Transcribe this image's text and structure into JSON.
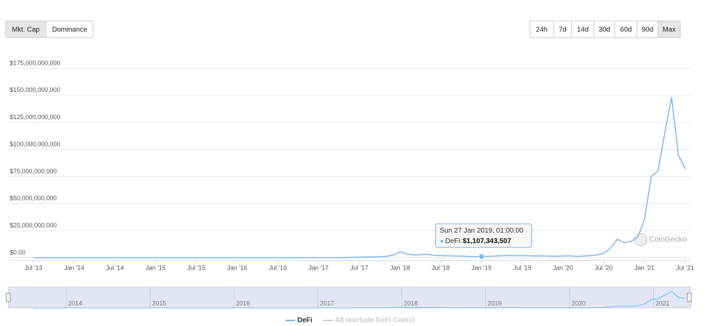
{
  "chart_data": {
    "type": "line",
    "tabs": [
      "Mkt. Cap",
      "Dominance"
    ],
    "ranges": [
      "24h",
      "7d",
      "14d",
      "30d",
      "60d",
      "90d",
      "Max"
    ],
    "watermark": "CoinGecko",
    "ylim": [
      0,
      175000000000
    ],
    "yticks": [
      {
        "value": 0,
        "label": "$0.00"
      },
      {
        "value": 25000000000,
        "label": "$25,000,000,000"
      },
      {
        "value": 50000000000,
        "label": "$50,000,000,000"
      },
      {
        "value": 75000000000,
        "label": "$75,000,000,000"
      },
      {
        "value": 100000000000,
        "label": "$100,000,000,000"
      },
      {
        "value": 125000000000,
        "label": "$125,000,000,000"
      },
      {
        "value": 150000000000,
        "label": "$150,000,000,000"
      },
      {
        "value": 175000000000,
        "label": "$175,000,000,000"
      }
    ],
    "xlim": [
      "2013-07",
      "2021-07"
    ],
    "xticks": [
      {
        "value": "2013-07",
        "label": "Jul '13"
      },
      {
        "value": "2014-01",
        "label": "Jan '14"
      },
      {
        "value": "2014-07",
        "label": "Jul '14"
      },
      {
        "value": "2015-01",
        "label": "Jan '15"
      },
      {
        "value": "2015-07",
        "label": "Jul '15"
      },
      {
        "value": "2016-01",
        "label": "Jan '16"
      },
      {
        "value": "2016-07",
        "label": "Jul '16"
      },
      {
        "value": "2017-01",
        "label": "Jan '17"
      },
      {
        "value": "2017-07",
        "label": "Jul '17"
      },
      {
        "value": "2018-01",
        "label": "Jan '18"
      },
      {
        "value": "2018-07",
        "label": "Jul '18"
      },
      {
        "value": "2019-01",
        "label": "Jan '19"
      },
      {
        "value": "2019-07",
        "label": "Jul '19"
      },
      {
        "value": "2020-01",
        "label": "Jan '20"
      },
      {
        "value": "2020-07",
        "label": "Jul '20"
      },
      {
        "value": "2021-01",
        "label": "Jan '21"
      },
      {
        "value": "2021-07",
        "label": "Jul '21"
      }
    ],
    "grid": true,
    "x": [
      "2013-07",
      "2013-10",
      "2014-01",
      "2014-04",
      "2014-07",
      "2014-10",
      "2015-01",
      "2015-04",
      "2015-07",
      "2015-10",
      "2016-01",
      "2016-04",
      "2016-07",
      "2016-10",
      "2017-01",
      "2017-02",
      "2017-03",
      "2017-04",
      "2017-05",
      "2017-06",
      "2017-07",
      "2017-08",
      "2017-09",
      "2017-10",
      "2017-11",
      "2017-12",
      "2018-01",
      "2018-02",
      "2018-03",
      "2018-04",
      "2018-05",
      "2018-06",
      "2018-07",
      "2018-08",
      "2018-09",
      "2018-10",
      "2018-11",
      "2018-12",
      "2019-01",
      "2019-02",
      "2019-03",
      "2019-04",
      "2019-05",
      "2019-06",
      "2019-07",
      "2019-08",
      "2019-09",
      "2019-10",
      "2019-11",
      "2019-12",
      "2020-01",
      "2020-02",
      "2020-03",
      "2020-04",
      "2020-05",
      "2020-06",
      "2020-07",
      "2020-08",
      "2020-09",
      "2020-10",
      "2020-11",
      "2020-12",
      "2021-01",
      "2021-02",
      "2021-03",
      "2021-04",
      "2021-05",
      "2021-06",
      "2021-07"
    ],
    "series": [
      {
        "name": "DeFi",
        "color": "#7cb5ec",
        "values": [
          2000000,
          3000000,
          4000000,
          5000000,
          6000000,
          5000000,
          5000000,
          6000000,
          8000000,
          10000000,
          12000000,
          15000000,
          20000000,
          30000000,
          50000000,
          60000000,
          100000000,
          150000000,
          250000000,
          400000000,
          500000000,
          700000000,
          800000000,
          900000000,
          1200000000,
          2500000000,
          5500000000,
          3500000000,
          2500000000,
          2800000000,
          3200000000,
          2200000000,
          2000000000,
          1800000000,
          1600000000,
          1500000000,
          1200000000,
          1000000000,
          1100000000,
          1300000000,
          1600000000,
          1800000000,
          2200000000,
          2000000000,
          1900000000,
          1800000000,
          1600000000,
          1700000000,
          1500000000,
          1400000000,
          1600000000,
          1800000000,
          1200000000,
          1500000000,
          1900000000,
          2500000000,
          4000000000,
          9000000000,
          17000000000,
          14000000000,
          15000000000,
          19000000000,
          35000000000,
          75000000000,
          80000000000,
          115000000000,
          148000000000,
          95000000000,
          82000000000
        ]
      },
      {
        "name": "All (exclude DeFi Coins)",
        "color": "#cccccc",
        "hidden": true
      }
    ],
    "tooltip": {
      "x": "2019-01",
      "date": "Sun 27 Jan 2019, 01:00:00",
      "label": "DeFi:",
      "value": 1107343507,
      "value_label": "$1,107,343,507"
    },
    "navigator": {
      "labels": [
        "2014",
        "2015",
        "2016",
        "2017",
        "2018",
        "2019",
        "2020",
        "2021"
      ]
    }
  }
}
